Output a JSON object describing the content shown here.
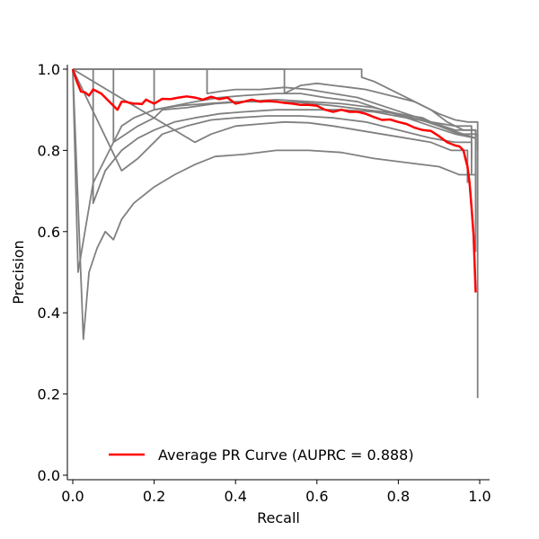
{
  "chart_data": {
    "type": "line",
    "xlabel": "Recall",
    "ylabel": "Precision",
    "xlim": [
      0.0,
      1.0
    ],
    "ylim": [
      0.0,
      1.0
    ],
    "x_ticks": [
      "0.0",
      "0.2",
      "0.4",
      "0.6",
      "0.8",
      "1.0"
    ],
    "y_ticks": [
      "0.0",
      "0.2",
      "0.4",
      "0.6",
      "0.8",
      "1.0"
    ],
    "grid": false,
    "legend": {
      "placement": "bottom-center",
      "label": "Average PR Curve (AUPRC = 0.888)"
    },
    "colors": {
      "average": "#ff0000",
      "fold_curves": "#808080"
    },
    "series": [
      {
        "role": "average",
        "x": [
          0.0,
          0.01,
          0.02,
          0.03,
          0.04,
          0.05,
          0.06,
          0.07,
          0.08,
          0.09,
          0.1,
          0.11,
          0.12,
          0.13,
          0.14,
          0.15,
          0.16,
          0.17,
          0.18,
          0.19,
          0.2,
          0.22,
          0.24,
          0.26,
          0.28,
          0.3,
          0.32,
          0.34,
          0.36,
          0.38,
          0.4,
          0.42,
          0.44,
          0.46,
          0.48,
          0.5,
          0.52,
          0.54,
          0.56,
          0.58,
          0.6,
          0.62,
          0.64,
          0.66,
          0.68,
          0.7,
          0.72,
          0.74,
          0.76,
          0.78,
          0.8,
          0.82,
          0.84,
          0.86,
          0.88,
          0.9,
          0.92,
          0.94,
          0.95,
          0.96,
          0.965,
          0.97,
          0.975,
          0.98,
          0.985,
          0.99
        ],
        "y": [
          1.0,
          0.97,
          0.945,
          0.943,
          0.935,
          0.95,
          0.945,
          0.94,
          0.93,
          0.92,
          0.91,
          0.9,
          0.92,
          0.92,
          0.917,
          0.915,
          0.915,
          0.914,
          0.925,
          0.92,
          0.915,
          0.927,
          0.926,
          0.93,
          0.933,
          0.93,
          0.925,
          0.932,
          0.926,
          0.93,
          0.915,
          0.92,
          0.925,
          0.92,
          0.922,
          0.92,
          0.917,
          0.915,
          0.912,
          0.912,
          0.91,
          0.9,
          0.895,
          0.9,
          0.895,
          0.895,
          0.89,
          0.882,
          0.875,
          0.876,
          0.87,
          0.865,
          0.856,
          0.85,
          0.848,
          0.835,
          0.82,
          0.812,
          0.81,
          0.8,
          0.78,
          0.76,
          0.72,
          0.66,
          0.59,
          0.45
        ]
      },
      {
        "role": "fold",
        "x": [
          0.0,
          0.013,
          0.013,
          0.05,
          0.1,
          0.16,
          0.2,
          0.22,
          0.28,
          0.35,
          0.42,
          0.5,
          0.58,
          0.66,
          0.74,
          0.8,
          0.86,
          0.9,
          0.95,
          0.995,
          0.995
        ],
        "y": [
          1.0,
          0.5,
          0.5,
          0.72,
          0.82,
          0.86,
          0.88,
          0.9,
          0.905,
          0.915,
          0.92,
          0.925,
          0.92,
          0.915,
          0.905,
          0.89,
          0.88,
          0.86,
          0.84,
          0.84,
          0.19
        ]
      },
      {
        "role": "fold",
        "x": [
          0.0,
          0.026,
          0.026,
          0.04,
          0.06,
          0.08,
          0.1,
          0.12,
          0.15,
          0.2,
          0.25,
          0.3,
          0.35,
          0.42,
          0.5,
          0.58,
          0.66,
          0.74,
          0.82,
          0.9,
          0.95,
          0.99,
          0.99
        ],
        "y": [
          1.0,
          0.335,
          0.335,
          0.5,
          0.56,
          0.6,
          0.58,
          0.63,
          0.67,
          0.71,
          0.74,
          0.765,
          0.785,
          0.79,
          0.8,
          0.8,
          0.795,
          0.78,
          0.77,
          0.76,
          0.74,
          0.74,
          0.55
        ]
      },
      {
        "role": "fold",
        "x": [
          0.0,
          0.05,
          0.05,
          0.08,
          0.12,
          0.16,
          0.2,
          0.25,
          0.3,
          0.36,
          0.42,
          0.5,
          0.58,
          0.66,
          0.74,
          0.82,
          0.88,
          0.94,
          0.99,
          0.99
        ],
        "y": [
          1.0,
          1.0,
          0.67,
          0.75,
          0.8,
          0.83,
          0.85,
          0.87,
          0.88,
          0.89,
          0.895,
          0.9,
          0.9,
          0.9,
          0.895,
          0.88,
          0.87,
          0.85,
          0.85,
          0.6
        ]
      },
      {
        "role": "fold",
        "x": [
          0.0,
          0.1,
          0.1,
          0.12,
          0.15,
          0.2,
          0.26,
          0.33,
          0.4,
          0.48,
          0.56,
          0.64,
          0.72,
          0.8,
          0.87,
          0.93,
          0.99,
          0.99
        ],
        "y": [
          1.0,
          1.0,
          0.82,
          0.86,
          0.88,
          0.9,
          0.91,
          0.915,
          0.92,
          0.92,
          0.918,
          0.91,
          0.9,
          0.89,
          0.87,
          0.85,
          0.83,
          0.7
        ]
      },
      {
        "role": "fold",
        "x": [
          0.0,
          0.2,
          0.2,
          0.25,
          0.3,
          0.36,
          0.42,
          0.5,
          0.56,
          0.62,
          0.7,
          0.76,
          0.82,
          0.88,
          0.94,
          0.99,
          0.99
        ],
        "y": [
          1.0,
          1.0,
          0.9,
          0.91,
          0.92,
          0.93,
          0.935,
          0.94,
          0.94,
          0.93,
          0.92,
          0.9,
          0.88,
          0.86,
          0.84,
          0.83,
          0.7
        ]
      },
      {
        "role": "fold",
        "x": [
          0.0,
          0.33,
          0.33,
          0.36,
          0.4,
          0.46,
          0.52,
          0.58,
          0.64,
          0.7,
          0.76,
          0.82,
          0.88,
          0.94,
          0.98,
          0.98
        ],
        "y": [
          1.0,
          1.0,
          0.94,
          0.945,
          0.95,
          0.95,
          0.955,
          0.95,
          0.94,
          0.93,
          0.91,
          0.89,
          0.87,
          0.86,
          0.86,
          0.78
        ]
      },
      {
        "role": "fold",
        "x": [
          0.0,
          0.52,
          0.52,
          0.56,
          0.6,
          0.64,
          0.68,
          0.72,
          0.76,
          0.8,
          0.84,
          0.88,
          0.92,
          0.96,
          0.99,
          0.99
        ],
        "y": [
          1.0,
          1.0,
          0.94,
          0.96,
          0.965,
          0.96,
          0.955,
          0.95,
          0.94,
          0.93,
          0.92,
          0.9,
          0.87,
          0.85,
          0.85,
          0.62
        ]
      },
      {
        "role": "fold",
        "x": [
          0.0,
          0.71,
          0.71,
          0.74,
          0.78,
          0.82,
          0.86,
          0.9,
          0.94,
          0.97,
          0.995,
          0.995
        ],
        "y": [
          1.0,
          1.0,
          0.98,
          0.97,
          0.95,
          0.93,
          0.91,
          0.89,
          0.875,
          0.87,
          0.87,
          0.8
        ]
      },
      {
        "role": "fold",
        "x": [
          0.0,
          0.12,
          0.12,
          0.16,
          0.22,
          0.28,
          0.34,
          0.4,
          0.48,
          0.56,
          0.64,
          0.72,
          0.8,
          0.88,
          0.94,
          0.98,
          0.98
        ],
        "y": [
          1.0,
          0.75,
          0.75,
          0.78,
          0.84,
          0.86,
          0.875,
          0.88,
          0.885,
          0.885,
          0.88,
          0.87,
          0.85,
          0.83,
          0.82,
          0.82,
          0.74
        ]
      },
      {
        "role": "fold",
        "x": [
          0.0,
          0.3,
          0.3,
          0.34,
          0.4,
          0.46,
          0.52,
          0.58,
          0.64,
          0.7,
          0.76,
          0.82,
          0.88,
          0.93,
          0.97,
          0.97
        ],
        "y": [
          1.0,
          0.82,
          0.82,
          0.84,
          0.86,
          0.865,
          0.87,
          0.868,
          0.86,
          0.85,
          0.84,
          0.83,
          0.82,
          0.8,
          0.8,
          0.72
        ]
      }
    ]
  }
}
